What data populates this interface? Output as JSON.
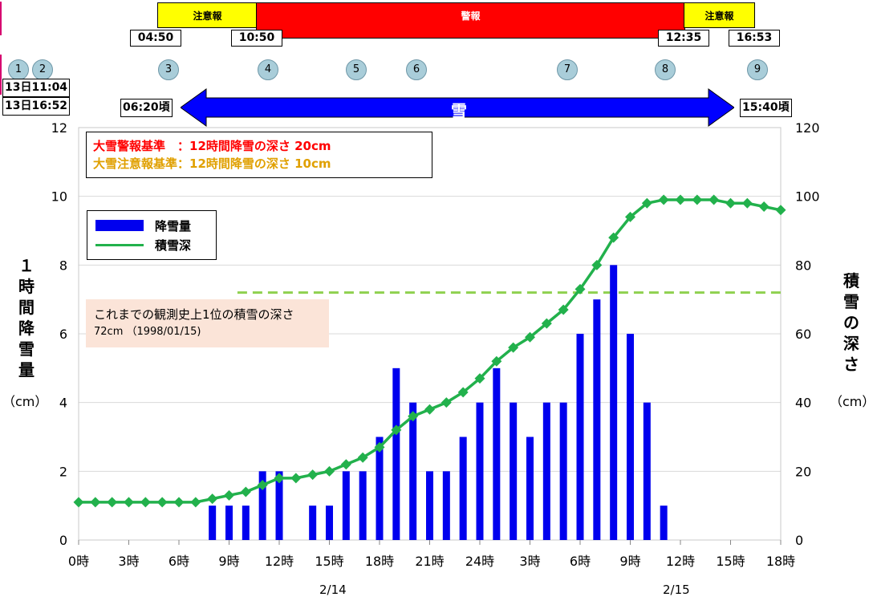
{
  "timeline": {
    "warning_bars": [
      {
        "label": "注意報",
        "color": "#ffff00",
        "start": "04:50",
        "end": "10:50"
      },
      {
        "label": "警報",
        "color": "#ff0000",
        "start": "10:50",
        "end": "12:35"
      },
      {
        "label": "注意報",
        "color": "#ffff00",
        "start": "12:35",
        "end": "16:53"
      }
    ],
    "times": [
      "04:50",
      "10:50",
      "12:35",
      "16:53"
    ],
    "events": [
      "1",
      "2",
      "3",
      "4",
      "5",
      "6",
      "7",
      "8",
      "9"
    ],
    "event_box": [
      "13日11:04",
      "13日16:52"
    ],
    "snow": {
      "label": "雪",
      "start": "06:20頃",
      "end": "15:40頃",
      "color": "#0000ff"
    }
  },
  "criteria": {
    "warning": "大雪警報基準　：12時間降雪の深さ  20cm",
    "advisory": "大雪注意報基準：12時間降雪の深さ  10cm",
    "warning_color": "#ff0000",
    "advisory_color": "#e0a000"
  },
  "record": {
    "line1": "これまでの観測史上1位の積雪の深さ",
    "line2": "72cm （1998/01/15)",
    "value": 72
  },
  "legend": {
    "bar": "降雪量",
    "line": "積雪深"
  },
  "axes": {
    "left_label": [
      "１",
      "時",
      "間",
      "降",
      "雪",
      "量"
    ],
    "left_unit": "（cm）",
    "right_label": [
      "積",
      "雪",
      "の",
      "深",
      "さ"
    ],
    "right_unit": "（cm）",
    "date_labels": [
      "2/14",
      "2/15"
    ]
  },
  "chart_data": {
    "type": "bar+line",
    "x_ticks": [
      "0時",
      "3時",
      "6時",
      "9時",
      "12時",
      "15時",
      "18時",
      "21時",
      "24時",
      "3時",
      "6時",
      "9時",
      "12時",
      "15時",
      "18時"
    ],
    "x_hours": [
      0,
      1,
      2,
      3,
      4,
      5,
      6,
      7,
      8,
      9,
      10,
      11,
      12,
      13,
      14,
      15,
      16,
      17,
      18,
      19,
      20,
      21,
      22,
      23,
      24,
      25,
      26,
      27,
      28,
      29,
      30,
      31,
      32,
      33,
      34,
      35,
      36,
      37,
      38,
      39,
      40,
      41,
      42
    ],
    "y_left_ticks": [
      0,
      2,
      4,
      6,
      8,
      10,
      12
    ],
    "y_right_ticks": [
      0,
      20,
      40,
      60,
      80,
      100,
      120
    ],
    "ylim_left": [
      0,
      12
    ],
    "ylim_right": [
      0,
      120
    ],
    "series": [
      {
        "name": "降雪量",
        "axis": "left",
        "color": "#0000ee",
        "values": [
          0,
          0,
          0,
          0,
          0,
          0,
          0,
          0,
          1,
          1,
          1,
          2,
          2,
          0,
          1,
          1,
          2,
          2,
          3,
          5,
          4,
          2,
          2,
          3,
          4,
          5,
          4,
          3,
          4,
          4,
          6,
          7,
          8,
          6,
          4,
          1,
          0,
          0,
          0,
          0,
          0,
          0,
          0
        ]
      },
      {
        "name": "積雪深",
        "axis": "right",
        "color": "#22b14c",
        "values": [
          11,
          11,
          11,
          11,
          11,
          11,
          11,
          11,
          12,
          13,
          14,
          16,
          18,
          18,
          19,
          20,
          22,
          24,
          27,
          32,
          36,
          38,
          40,
          43,
          47,
          52,
          56,
          59,
          63,
          67,
          73,
          80,
          88,
          94,
          98,
          99,
          99,
          99,
          99,
          98,
          98,
          97,
          96
        ]
      }
    ],
    "reference_line": {
      "value_right": 72,
      "from_hour": 9.5,
      "color": "#8fd14f"
    }
  }
}
